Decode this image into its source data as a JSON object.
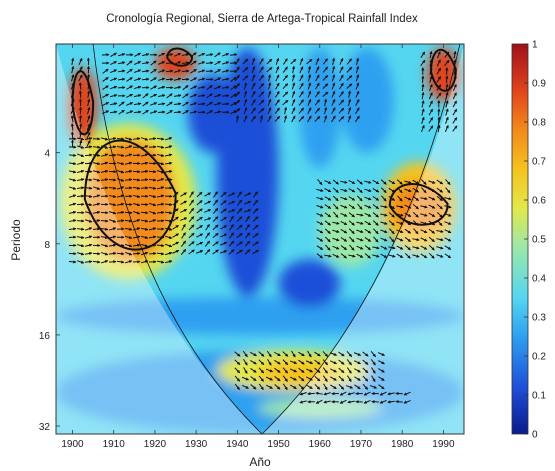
{
  "chart_data": {
    "type": "heatmap",
    "title": "Cronología Regional, Sierra de Artega-Tropical Rainfall Index",
    "xlabel": "Año",
    "ylabel": "Periodo",
    "x_ticks": [
      "1900",
      "1910",
      "1920",
      "1930",
      "1940",
      "1950",
      "1960",
      "1970",
      "1980",
      "1990"
    ],
    "x_tick_values": [
      1900,
      1910,
      1920,
      1930,
      1940,
      1950,
      1960,
      1970,
      1980,
      1990
    ],
    "xlim": [
      1896,
      1995
    ],
    "y_ticks": [
      "4",
      "8",
      "16",
      "32"
    ],
    "y_tick_values": [
      4,
      8,
      16,
      32
    ],
    "ylim": [
      1.75,
      34
    ],
    "y_scale": "log2",
    "y_inverted": true,
    "colorbar": {
      "ticks": [
        "0",
        "0.1",
        "0.2",
        "0.3",
        "0.4",
        "0.5",
        "0.6",
        "0.7",
        "0.8",
        "0.9",
        "1"
      ],
      "range": [
        0,
        1
      ],
      "colormap": [
        "#0b1a8c",
        "#1f4fd8",
        "#2ea0f0",
        "#55d6f0",
        "#9de8a8",
        "#e3e84a",
        "#f5c21f",
        "#f28a1a",
        "#e0441c",
        "#a0101a"
      ]
    },
    "significance_regions": [
      {
        "year_range": [
          1900,
          1905
        ],
        "period_range": [
          2.1,
          3.7
        ],
        "coherence": 0.85
      },
      {
        "year_range": [
          1903,
          1925
        ],
        "period_range": [
          3.5,
          9.3
        ],
        "coherence": 0.88
      },
      {
        "year_range": [
          1977,
          1991
        ],
        "period_range": [
          5.0,
          7.2
        ],
        "coherence": 0.82
      },
      {
        "year_range": [
          1923,
          1929
        ],
        "period_range": [
          1.8,
          2.1
        ],
        "coherence": 0.9
      },
      {
        "year_range": [
          1987,
          1993
        ],
        "period_range": [
          1.8,
          2.6
        ],
        "coherence": 0.9
      }
    ],
    "cone_of_influence": {
      "edge_years": [
        1896,
        1995
      ],
      "apex_year": 1946,
      "apex_period": 34
    },
    "phase_arrows": "present"
  }
}
